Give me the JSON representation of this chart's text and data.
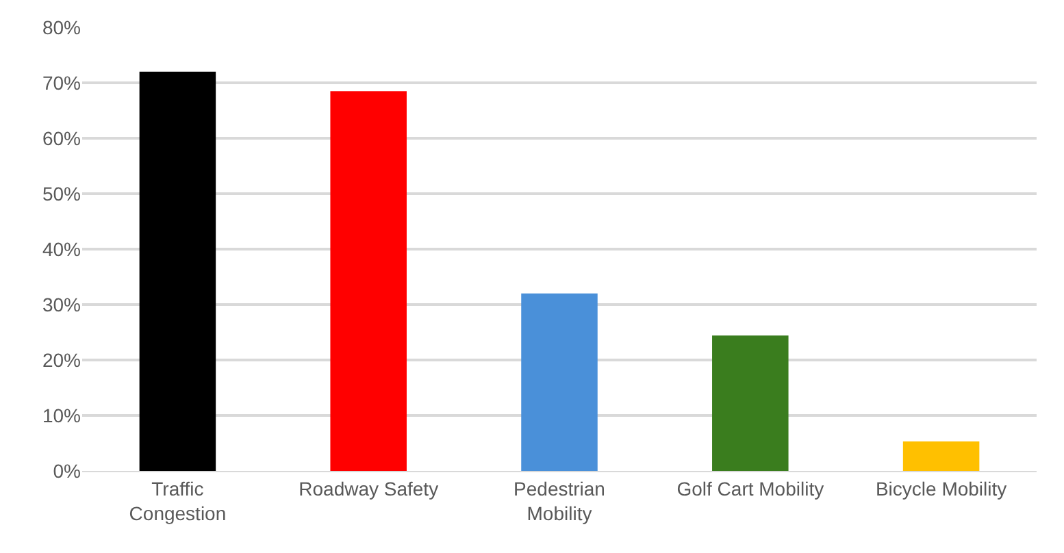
{
  "chart_data": {
    "type": "bar",
    "categories": [
      "Traffic\nCongestion",
      "Roadway Safety",
      "Pedestrian\nMobility",
      "Golf Cart Mobility",
      "Bicycle Mobility"
    ],
    "values": [
      72,
      68.5,
      32,
      24.4,
      5.3
    ],
    "colors": [
      "#000000",
      "#ff0000",
      "#4a90d9",
      "#3a7d1e",
      "#ffc000"
    ],
    "ylim": [
      0,
      80
    ],
    "yticks": [
      {
        "value": 0,
        "label": "0%"
      },
      {
        "value": 10,
        "label": "10%"
      },
      {
        "value": 20,
        "label": "20%"
      },
      {
        "value": 30,
        "label": "30%"
      },
      {
        "value": 40,
        "label": "40%"
      },
      {
        "value": 50,
        "label": "50%"
      },
      {
        "value": 60,
        "label": "60%"
      },
      {
        "value": 70,
        "label": "70%"
      },
      {
        "value": 80,
        "label": "80%"
      }
    ],
    "grid": "y"
  }
}
